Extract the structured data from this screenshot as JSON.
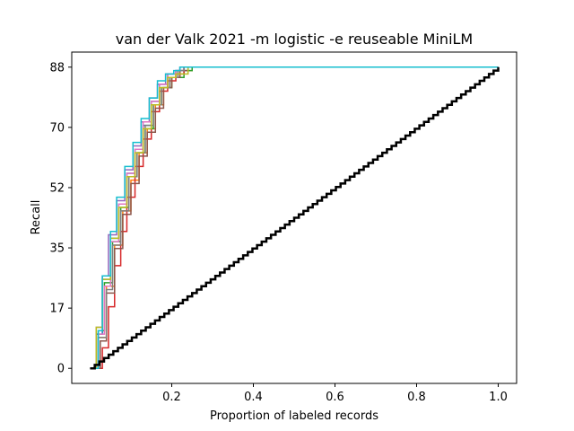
{
  "chart_data": {
    "type": "line",
    "title": "van der Valk 2021 -m logistic -e reuseable MiniLM",
    "xlabel": "Proportion of labeled records",
    "ylabel": "Recall",
    "x_ticks": [
      "0.2",
      "0.4",
      "0.6",
      "0.8",
      "1.0"
    ],
    "x_tick_values": [
      0.2,
      0.4,
      0.6,
      0.8,
      1.0
    ],
    "y_ticks": [
      "0",
      "17",
      "35",
      "52",
      "70",
      "88"
    ],
    "y_tick_values": [
      0,
      17.6,
      35.2,
      52.8,
      70.4,
      88
    ],
    "xlim": [
      -0.045,
      1.045
    ],
    "ylim": [
      -4.4,
      92.4
    ],
    "grid": false,
    "legend": "none",
    "series": [
      {
        "color": "#1f77b4",
        "x": [
          0.0,
          0.015,
          0.03,
          0.05,
          0.07,
          0.09,
          0.11,
          0.13,
          0.15,
          0.17,
          0.19,
          0.21,
          0.23,
          1.0
        ],
        "y": [
          0,
          10,
          26,
          38,
          48,
          57,
          64,
          71,
          78,
          83,
          86,
          87,
          88,
          88
        ]
      },
      {
        "color": "#ff7f0e",
        "x": [
          0.0,
          0.02,
          0.04,
          0.06,
          0.08,
          0.1,
          0.12,
          0.14,
          0.16,
          0.18,
          0.2,
          0.22,
          0.25,
          1.0
        ],
        "y": [
          0,
          9,
          24,
          36,
          46,
          55,
          63,
          70,
          77,
          82,
          85,
          87,
          88,
          88
        ]
      },
      {
        "color": "#2ca02c",
        "x": [
          0.0,
          0.02,
          0.035,
          0.055,
          0.075,
          0.095,
          0.115,
          0.135,
          0.155,
          0.175,
          0.2,
          0.23,
          0.25,
          1.0
        ],
        "y": [
          0,
          11,
          25,
          37,
          47,
          56,
          63,
          70,
          77,
          82,
          85,
          87,
          88,
          88
        ]
      },
      {
        "color": "#d62728",
        "x": [
          0.0,
          0.03,
          0.045,
          0.06,
          0.075,
          0.09,
          0.11,
          0.13,
          0.15,
          0.17,
          0.19,
          0.21,
          0.23,
          1.0
        ],
        "y": [
          0,
          6,
          18,
          30,
          40,
          50,
          59,
          67,
          75,
          81,
          84,
          86,
          88,
          88
        ]
      },
      {
        "color": "#9467bd",
        "x": [
          0.0,
          0.015,
          0.03,
          0.045,
          0.065,
          0.085,
          0.105,
          0.125,
          0.145,
          0.165,
          0.185,
          0.21,
          0.22,
          1.0
        ],
        "y": [
          0,
          12,
          27,
          39,
          49,
          58,
          65,
          72,
          79,
          83,
          86,
          87,
          88,
          88
        ]
      },
      {
        "color": "#8c564b",
        "x": [
          0.0,
          0.025,
          0.04,
          0.06,
          0.08,
          0.1,
          0.12,
          0.14,
          0.16,
          0.18,
          0.2,
          0.22,
          0.24,
          1.0
        ],
        "y": [
          0,
          8,
          22,
          35,
          45,
          54,
          62,
          69,
          76,
          82,
          85,
          87,
          88,
          88
        ]
      },
      {
        "color": "#e377c2",
        "x": [
          0.0,
          0.02,
          0.035,
          0.05,
          0.07,
          0.09,
          0.11,
          0.13,
          0.15,
          0.17,
          0.19,
          0.21,
          0.23,
          1.0
        ],
        "y": [
          0,
          10,
          24,
          37,
          48,
          57,
          64,
          72,
          78,
          83,
          86,
          87,
          88,
          88
        ]
      },
      {
        "color": "#7f7f7f",
        "x": [
          0.0,
          0.02,
          0.04,
          0.055,
          0.075,
          0.095,
          0.115,
          0.135,
          0.155,
          0.175,
          0.195,
          0.215,
          0.23,
          1.0
        ],
        "y": [
          0,
          9,
          23,
          36,
          46,
          56,
          63,
          71,
          77,
          82,
          85,
          87,
          88,
          88
        ]
      },
      {
        "color": "#bcbd22",
        "x": [
          0.0,
          0.015,
          0.03,
          0.05,
          0.07,
          0.09,
          0.11,
          0.13,
          0.15,
          0.17,
          0.19,
          0.21,
          0.24,
          1.0
        ],
        "y": [
          0,
          12,
          26,
          38,
          47,
          56,
          63,
          70,
          77,
          82,
          85,
          86,
          88,
          88
        ]
      },
      {
        "color": "#17becf",
        "x": [
          0.0,
          0.02,
          0.03,
          0.05,
          0.065,
          0.085,
          0.105,
          0.125,
          0.145,
          0.165,
          0.185,
          0.205,
          0.22,
          1.0
        ],
        "y": [
          0,
          11,
          27,
          40,
          50,
          59,
          66,
          73,
          79,
          84,
          86,
          87,
          88,
          88
        ]
      },
      {
        "color": "#000000",
        "x": [
          0.0,
          1.0
        ],
        "y": [
          0,
          88
        ],
        "stepped": true
      }
    ]
  }
}
